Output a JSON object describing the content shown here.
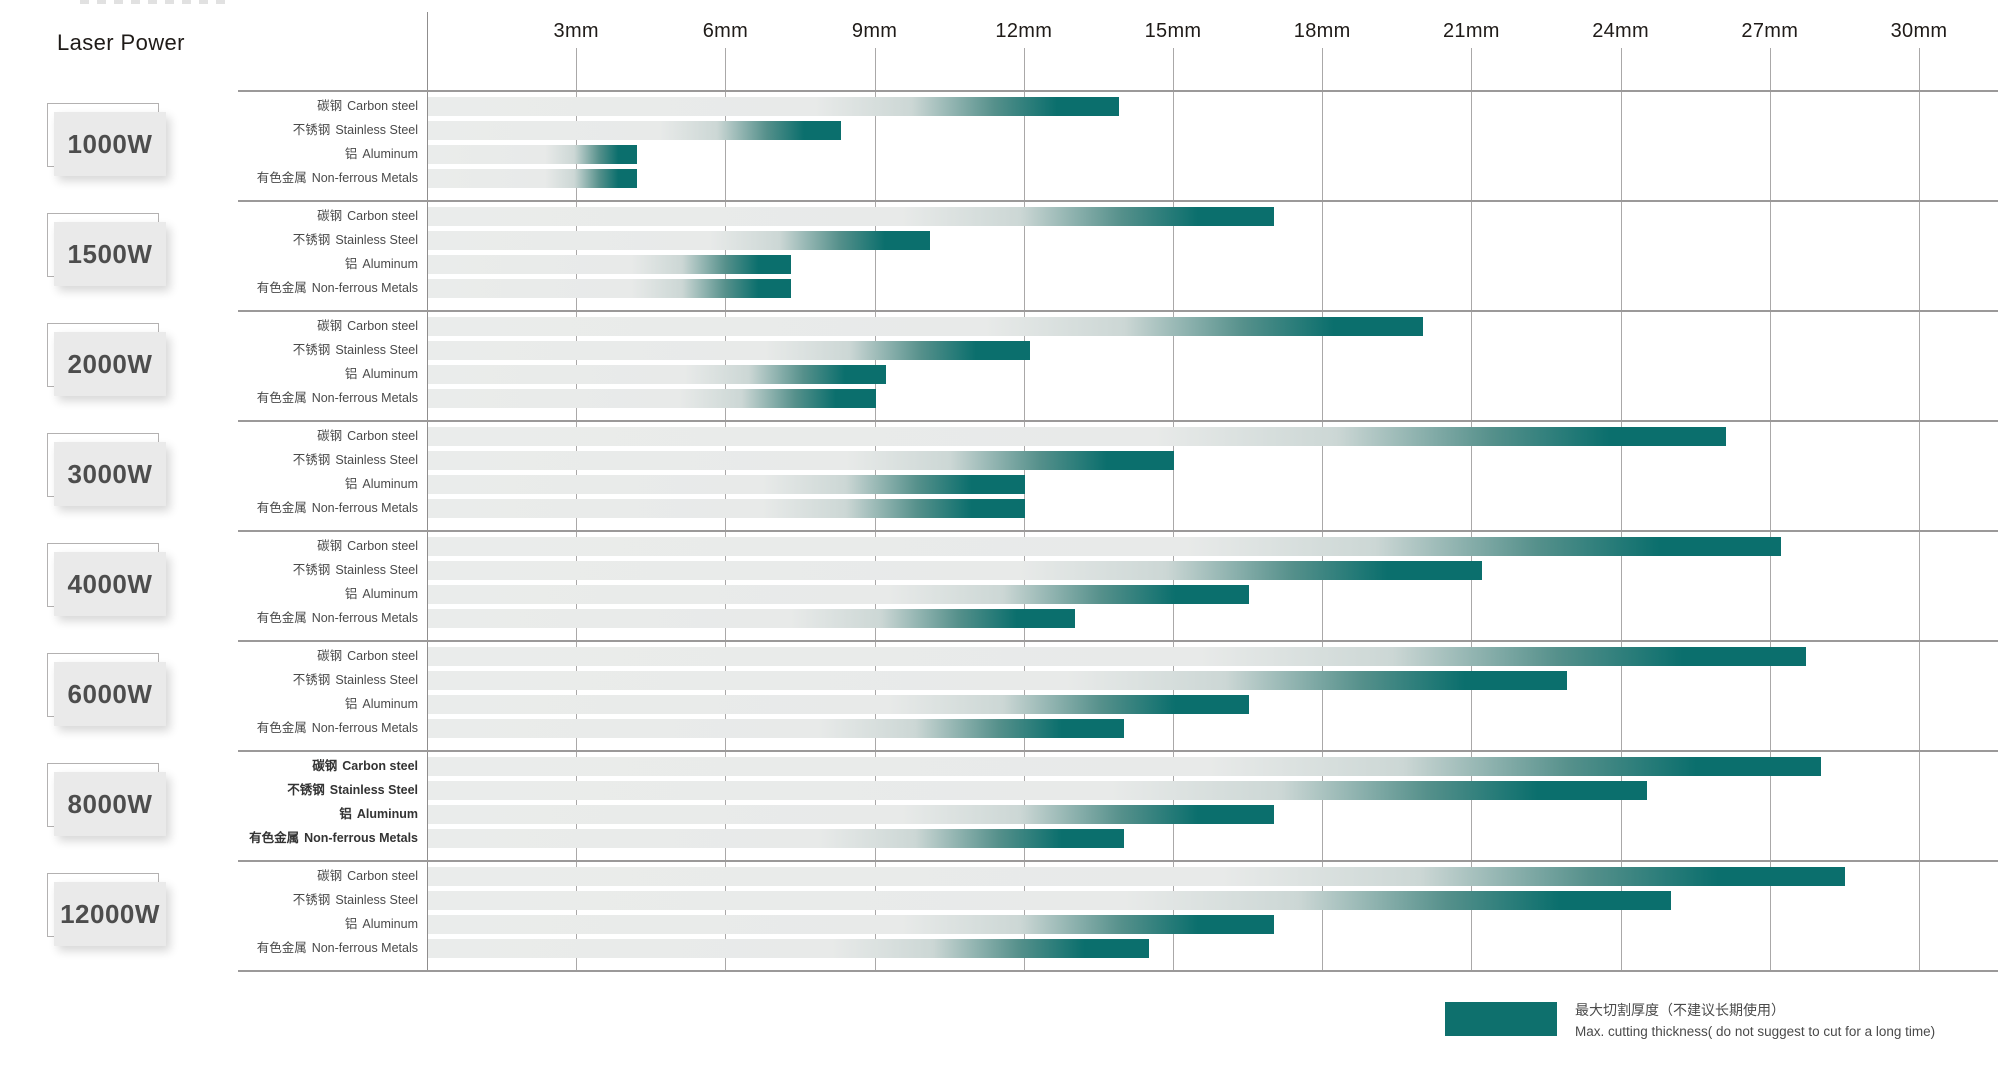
{
  "header": {
    "y_axis_title": "Laser Power"
  },
  "colors": {
    "bar_track_gray": "#e9ebea",
    "bar_teal": "#0b6f6d",
    "gridline": "#aaa8a8",
    "separator": "#9b9999",
    "power_box_fill": "#eaeaea",
    "power_box_border": "#b3b1b1",
    "text_dark": "#1f1b18",
    "label_gray": "#4a4a4a"
  },
  "legend": {
    "swatch": "teal-bar-swatch",
    "zh": "最大切割厚度（不建议长期使用）",
    "en": "Max. cutting thickness( do not suggest to cut for a long time)"
  },
  "chart_data": {
    "type": "bar",
    "title": "Laser Power",
    "unit": "mm",
    "xlim": [
      0,
      30
    ],
    "x_ticks": [
      3,
      6,
      9,
      12,
      15,
      18,
      21,
      24,
      27,
      30
    ],
    "x_tick_labels": [
      "3mm",
      "6mm",
      "9mm",
      "12mm",
      "15mm",
      "18mm",
      "21mm",
      "24mm",
      "27mm",
      "30mm"
    ],
    "grid": true,
    "materials": [
      {
        "cn": "碳钢",
        "en": "Carbon steel"
      },
      {
        "cn": "不锈钢",
        "en": "Stainless Steel"
      },
      {
        "cn": "铝",
        "en": "Aluminum"
      },
      {
        "cn": "有色金属",
        "en": "Non-ferrous Metals"
      }
    ],
    "series": [
      {
        "power": "1000W",
        "values": [
          13.9,
          8.3,
          4.2,
          4.2
        ]
      },
      {
        "power": "1500W",
        "values": [
          17.0,
          10.1,
          7.3,
          7.3
        ]
      },
      {
        "power": "2000W",
        "values": [
          20.0,
          12.1,
          9.2,
          9.0
        ]
      },
      {
        "power": "3000W",
        "values": [
          26.1,
          15.0,
          12.0,
          12.0
        ]
      },
      {
        "power": "4000W",
        "values": [
          27.2,
          21.2,
          16.5,
          13.0
        ]
      },
      {
        "power": "6000W",
        "values": [
          27.7,
          22.9,
          16.5,
          14.0
        ]
      },
      {
        "power": "8000W",
        "values": [
          28.0,
          24.5,
          17.0,
          14.0
        ],
        "bold_labels": true
      },
      {
        "power": "12000W",
        "values": [
          28.5,
          25.0,
          17.0,
          14.5
        ]
      }
    ],
    "legend": {
      "zh": "最大切割厚度（不建议长期使用）",
      "en": "Max. cutting thickness( do not suggest to cut for a long time)"
    }
  }
}
